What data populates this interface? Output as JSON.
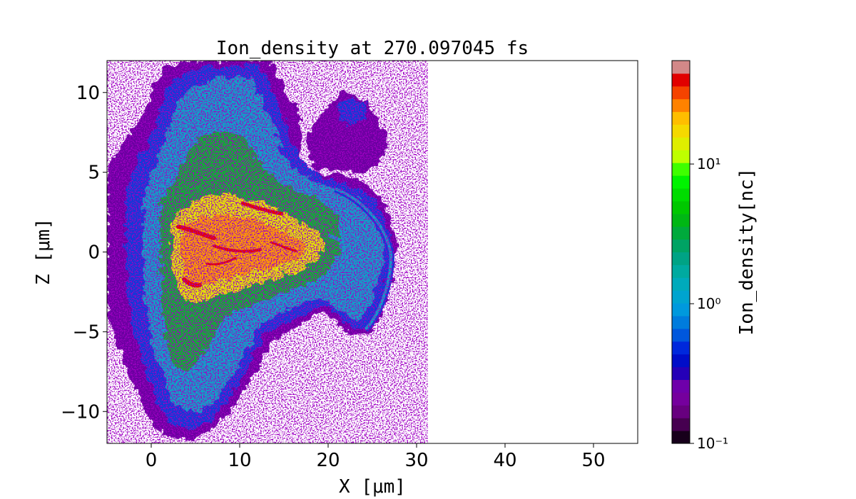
{
  "chart_data": {
    "type": "heatmap",
    "title": "Ion_density at 270.097045 fs",
    "xlabel": "X [μm]",
    "ylabel": "Z [μm]",
    "colorbar_label": "Ion_density[nc]",
    "xlim": [
      -5,
      55
    ],
    "ylim": [
      -12,
      12
    ],
    "x_ticks": [
      0,
      10,
      20,
      30,
      40,
      50
    ],
    "y_ticks": [
      -10,
      -5,
      0,
      5,
      10
    ],
    "x_tick_labels": [
      "0",
      "10",
      "20",
      "30",
      "40",
      "50"
    ],
    "y_tick_labels": [
      "−10",
      "−5",
      "0",
      "5",
      "10"
    ],
    "colorbar": {
      "scale": "log",
      "range": [
        0.1,
        55
      ],
      "ticks": [
        0.1,
        1,
        10
      ],
      "tick_labels": [
        "10⁻¹",
        "10⁰",
        "10¹"
      ],
      "colormap": "nipy_spectral",
      "levels": 30
    },
    "grid": false,
    "features": [
      {
        "kind": "plasma-bulk",
        "x_range": [
          -5,
          28
        ],
        "z_range": [
          -12,
          12
        ],
        "peak_density": 50
      },
      {
        "kind": "dense-core",
        "center": [
          10,
          0
        ],
        "z_extent": [
          -3,
          3
        ],
        "level": "red"
      },
      {
        "kind": "expanding-shell",
        "center_x": 26,
        "z_extent": [
          -5,
          4.5
        ]
      },
      {
        "kind": "upper-filament-cloud",
        "x_range": [
          18,
          27
        ],
        "z_range": [
          4,
          10
        ]
      }
    ]
  },
  "colors": {
    "low": "#5a0090",
    "mid": "#00a9a0",
    "high": "#e80000"
  }
}
